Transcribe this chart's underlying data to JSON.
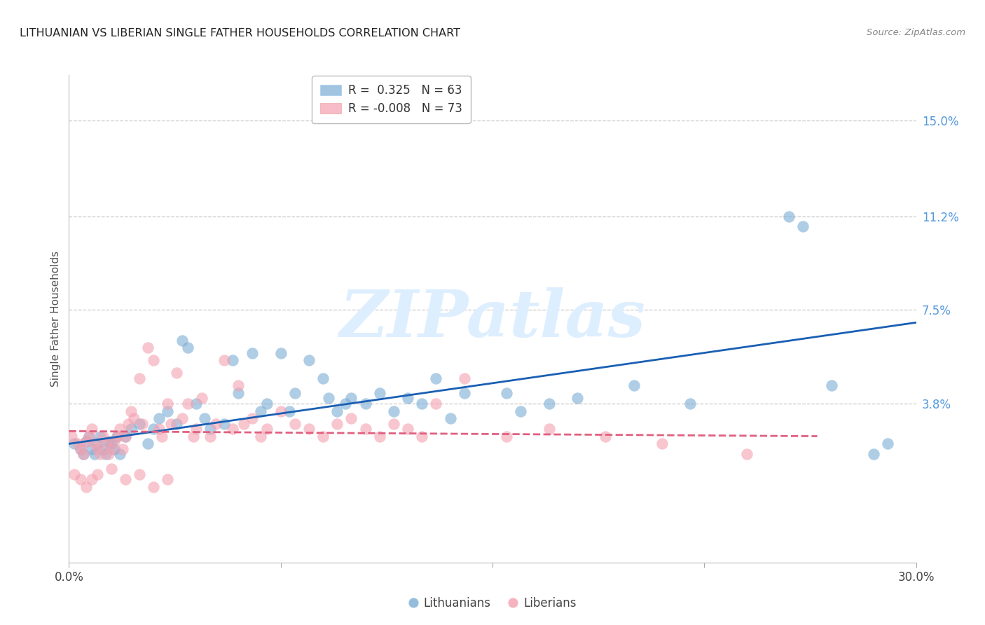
{
  "title": "LITHUANIAN VS LIBERIAN SINGLE FATHER HOUSEHOLDS CORRELATION CHART",
  "source": "Source: ZipAtlas.com",
  "ylabel": "Single Father Households",
  "ytick_labels": [
    "15.0%",
    "11.2%",
    "7.5%",
    "3.8%"
  ],
  "ytick_values": [
    0.15,
    0.112,
    0.075,
    0.038
  ],
  "xlim": [
    0.0,
    0.3
  ],
  "ylim": [
    -0.025,
    0.168
  ],
  "blue_color": "#7aadd4",
  "pink_color": "#f4a0b0",
  "trend_blue": "#1a5fb4",
  "trend_pink": "#e06080",
  "watermark_text": "ZIPatlas",
  "watermark_color": "#ddeeff",
  "blue_trend_x": [
    0.0,
    0.3
  ],
  "blue_trend_y": [
    0.022,
    0.07
  ],
  "pink_trend_x": [
    0.0,
    0.265
  ],
  "pink_trend_y": [
    0.027,
    0.025
  ],
  "legend_text1": "R =  0.325   N = 63",
  "legend_text2": "R = -0.008   N = 73",
  "blue_scatter_x": [
    0.002,
    0.004,
    0.005,
    0.006,
    0.007,
    0.008,
    0.009,
    0.01,
    0.011,
    0.012,
    0.013,
    0.014,
    0.015,
    0.016,
    0.017,
    0.018,
    0.02,
    0.022,
    0.025,
    0.028,
    0.03,
    0.032,
    0.035,
    0.038,
    0.04,
    0.042,
    0.045,
    0.048,
    0.05,
    0.055,
    0.058,
    0.06,
    0.065,
    0.068,
    0.07,
    0.075,
    0.078,
    0.08,
    0.085,
    0.09,
    0.092,
    0.095,
    0.098,
    0.1,
    0.105,
    0.11,
    0.115,
    0.12,
    0.125,
    0.13,
    0.135,
    0.14,
    0.155,
    0.16,
    0.17,
    0.18,
    0.2,
    0.22,
    0.255,
    0.26,
    0.27,
    0.285,
    0.29
  ],
  "blue_scatter_y": [
    0.022,
    0.02,
    0.018,
    0.023,
    0.025,
    0.02,
    0.018,
    0.022,
    0.025,
    0.02,
    0.018,
    0.023,
    0.022,
    0.02,
    0.025,
    0.018,
    0.025,
    0.028,
    0.03,
    0.022,
    0.028,
    0.032,
    0.035,
    0.03,
    0.063,
    0.06,
    0.038,
    0.032,
    0.028,
    0.03,
    0.055,
    0.042,
    0.058,
    0.035,
    0.038,
    0.058,
    0.035,
    0.042,
    0.055,
    0.048,
    0.04,
    0.035,
    0.038,
    0.04,
    0.038,
    0.042,
    0.035,
    0.04,
    0.038,
    0.048,
    0.032,
    0.042,
    0.042,
    0.035,
    0.038,
    0.04,
    0.045,
    0.038,
    0.112,
    0.108,
    0.045,
    0.018,
    0.022
  ],
  "pink_scatter_x": [
    0.001,
    0.003,
    0.004,
    0.005,
    0.006,
    0.007,
    0.008,
    0.009,
    0.01,
    0.011,
    0.012,
    0.013,
    0.014,
    0.015,
    0.016,
    0.017,
    0.018,
    0.019,
    0.02,
    0.021,
    0.022,
    0.023,
    0.025,
    0.026,
    0.028,
    0.03,
    0.032,
    0.033,
    0.035,
    0.036,
    0.038,
    0.04,
    0.042,
    0.044,
    0.045,
    0.047,
    0.05,
    0.052,
    0.055,
    0.058,
    0.06,
    0.062,
    0.065,
    0.068,
    0.07,
    0.075,
    0.08,
    0.085,
    0.09,
    0.095,
    0.1,
    0.105,
    0.11,
    0.115,
    0.12,
    0.125,
    0.13,
    0.14,
    0.155,
    0.17,
    0.19,
    0.21,
    0.24,
    0.002,
    0.004,
    0.006,
    0.008,
    0.01,
    0.015,
    0.02,
    0.025,
    0.03,
    0.035
  ],
  "pink_scatter_y": [
    0.025,
    0.022,
    0.02,
    0.018,
    0.023,
    0.025,
    0.028,
    0.022,
    0.02,
    0.018,
    0.025,
    0.022,
    0.018,
    0.02,
    0.023,
    0.025,
    0.028,
    0.02,
    0.025,
    0.03,
    0.035,
    0.032,
    0.048,
    0.03,
    0.06,
    0.055,
    0.028,
    0.025,
    0.038,
    0.03,
    0.05,
    0.032,
    0.038,
    0.025,
    0.028,
    0.04,
    0.025,
    0.03,
    0.055,
    0.028,
    0.045,
    0.03,
    0.032,
    0.025,
    0.028,
    0.035,
    0.03,
    0.028,
    0.025,
    0.03,
    0.032,
    0.028,
    0.025,
    0.03,
    0.028,
    0.025,
    0.038,
    0.048,
    0.025,
    0.028,
    0.025,
    0.022,
    0.018,
    0.01,
    0.008,
    0.005,
    0.008,
    0.01,
    0.012,
    0.008,
    0.01,
    0.005,
    0.008
  ]
}
